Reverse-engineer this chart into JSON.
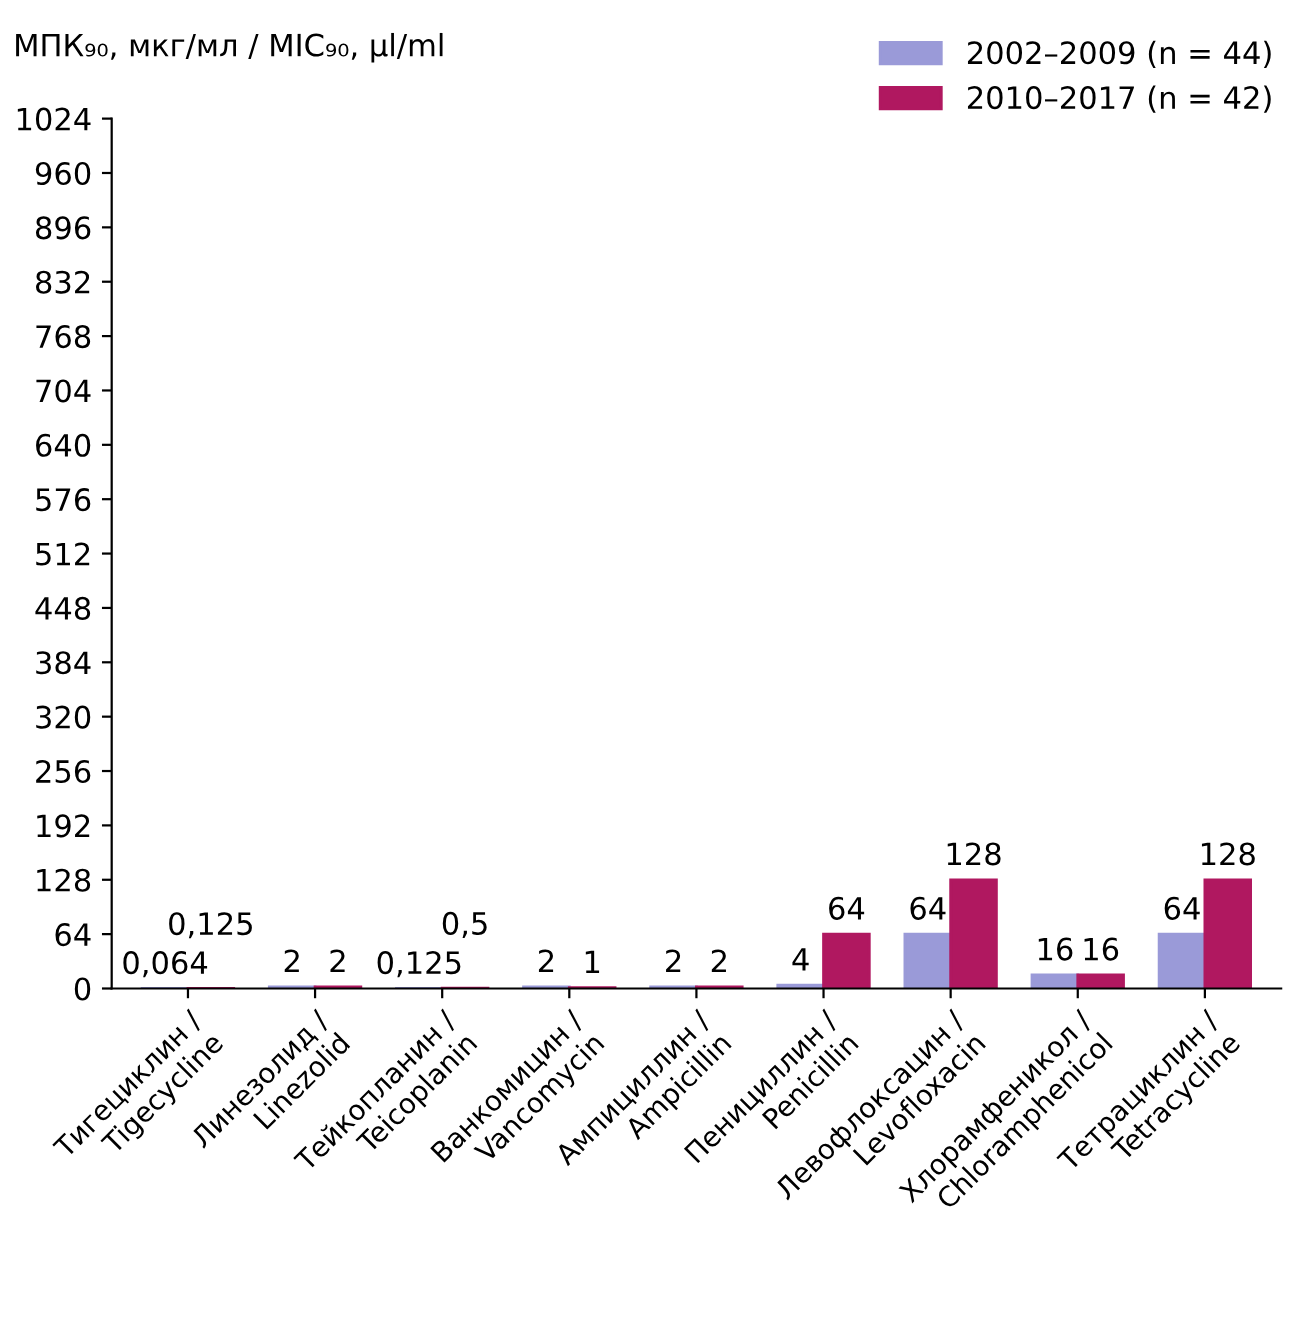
{
  "chart_data": {
    "type": "bar",
    "ylabel": "МПК₉₀, мкг/мл / MIC₉₀, µl/ml",
    "categories": [
      "Тигециклин /\nTigecycline",
      "Линезолид /\nLinezolid",
      "Тейкопланин /\nTeicoplanin",
      "Ванкомицин /\nVancomycin",
      "Ампициллин /\nAmpicillin",
      "Пенициллин /\nPenicillin",
      "Левофлоксацин /\nLevofloxacin",
      "Хлорамфеникол /\nChloramphenicol",
      "Тетрациклин /\nTetracycline"
    ],
    "series": [
      {
        "name": "2002–2009 (n = 44)",
        "color": "#9a9ad8",
        "values": [
          0.064,
          2,
          0.125,
          2,
          2,
          4,
          64,
          16,
          64
        ],
        "value_labels": [
          "0,064",
          "2",
          "0,125",
          "2",
          "2",
          "4",
          "64",
          "16",
          "64"
        ]
      },
      {
        "name": "2010–2017 (n = 42)",
        "color": "#b01860",
        "values": [
          0.125,
          2,
          0.5,
          1,
          2,
          64,
          128,
          16,
          128
        ],
        "value_labels": [
          "0,125",
          "2",
          "0,5",
          "1",
          "2",
          "64",
          "128",
          "16",
          "128"
        ]
      }
    ],
    "ylim": [
      0,
      1024
    ],
    "yticks": [
      0,
      64,
      128,
      192,
      256,
      320,
      384,
      448,
      512,
      576,
      640,
      704,
      768,
      832,
      896,
      960,
      1024
    ],
    "grid": false,
    "legend": "top right"
  }
}
